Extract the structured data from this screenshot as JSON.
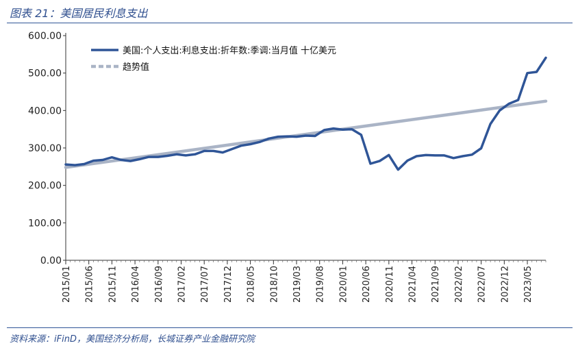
{
  "figure_title": "图表 21：美国居民利息支出",
  "source_note": "资料来源：iFinD，美国经济分析局，长城证券产业金融研究院",
  "chart_data": {
    "type": "line",
    "ylim": [
      0,
      600
    ],
    "y_ticks": [
      "0.00",
      "100.00",
      "200.00",
      "300.00",
      "400.00",
      "500.00",
      "600.00"
    ],
    "x_tick_labels": [
      "2015/01",
      "2015/06",
      "2015/11",
      "2016/04",
      "2016/09",
      "2017/02",
      "2017/07",
      "2017/12",
      "2018/05",
      "2018/10",
      "2019/03",
      "2019/08",
      "2020/01",
      "2020/06",
      "2020/11",
      "2021/04",
      "2021/09",
      "2022/02",
      "2022/07",
      "2022/12",
      "2023/05"
    ],
    "grid": false,
    "legend_position": "top-left",
    "colors": {
      "series": "#2f5597",
      "trend": "#aab4c6"
    },
    "series": [
      {
        "name": "美国:个人支出:利息支出:折年数:季调:当月值 十亿美元",
        "x": [
          "2015/01",
          "2015/03",
          "2015/05",
          "2015/07",
          "2015/09",
          "2015/11",
          "2016/01",
          "2016/03",
          "2016/05",
          "2016/07",
          "2016/09",
          "2016/11",
          "2017/01",
          "2017/03",
          "2017/05",
          "2017/07",
          "2017/09",
          "2017/11",
          "2018/01",
          "2018/03",
          "2018/05",
          "2018/07",
          "2018/09",
          "2018/11",
          "2019/01",
          "2019/03",
          "2019/05",
          "2019/07",
          "2019/09",
          "2019/11",
          "2020/01",
          "2020/03",
          "2020/05",
          "2020/07",
          "2020/09",
          "2020/11",
          "2021/01",
          "2021/03",
          "2021/05",
          "2021/07",
          "2021/09",
          "2021/11",
          "2022/01",
          "2022/03",
          "2022/05",
          "2022/07",
          "2022/09",
          "2022/11",
          "2023/01",
          "2023/03",
          "2023/05",
          "2023/07",
          "2023/09"
        ],
        "values": [
          256,
          254,
          257,
          266,
          268,
          275,
          268,
          265,
          270,
          276,
          276,
          279,
          283,
          280,
          283,
          292,
          292,
          288,
          297,
          306,
          310,
          316,
          325,
          330,
          331,
          330,
          333,
          332,
          348,
          352,
          349,
          350,
          335,
          258,
          265,
          281,
          242,
          266,
          278,
          281,
          280,
          280,
          273,
          278,
          282,
          299,
          364,
          400,
          418,
          428,
          500,
          503,
          541
        ]
      },
      {
        "name": "趋势值",
        "x": [
          "2015/01",
          "2023/09"
        ],
        "values": [
          248,
          425
        ]
      }
    ]
  }
}
